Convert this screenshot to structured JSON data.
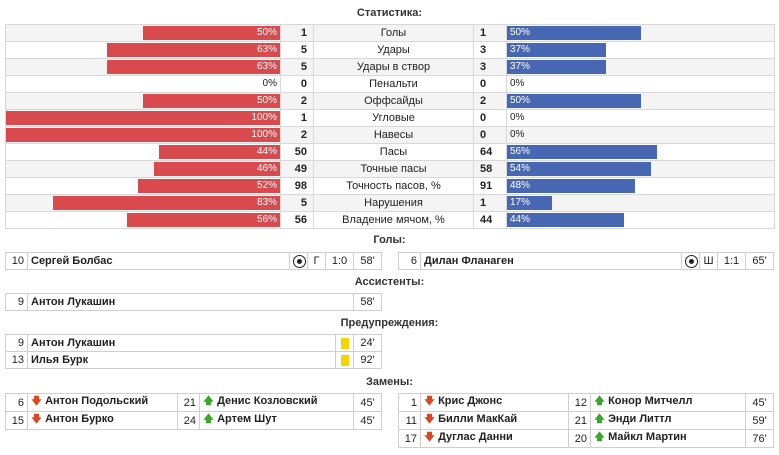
{
  "titles": {
    "stats": "Статистика:",
    "goals": "Голы:",
    "assists": "Ассистенты:",
    "warnings": "Предупреждения:",
    "subs": "Замены:"
  },
  "colors": {
    "home_bar": "#d84a4e",
    "away_bar": "#4867b2"
  },
  "stats": [
    {
      "label": "Голы",
      "home": "1",
      "away": "1",
      "home_pct": "50%",
      "away_pct": "50%",
      "home_frac": 0.5,
      "away_frac": 0.5
    },
    {
      "label": "Удары",
      "home": "5",
      "away": "3",
      "home_pct": "63%",
      "away_pct": "37%",
      "home_frac": 0.63,
      "away_frac": 0.37
    },
    {
      "label": "Удары в створ",
      "home": "5",
      "away": "3",
      "home_pct": "63%",
      "away_pct": "37%",
      "home_frac": 0.63,
      "away_frac": 0.37
    },
    {
      "label": "Пенальти",
      "home": "0",
      "away": "0",
      "home_pct": "0%",
      "away_pct": "0%",
      "home_frac": 0,
      "away_frac": 0
    },
    {
      "label": "Оффсайды",
      "home": "2",
      "away": "2",
      "home_pct": "50%",
      "away_pct": "50%",
      "home_frac": 0.5,
      "away_frac": 0.5
    },
    {
      "label": "Угловые",
      "home": "1",
      "away": "0",
      "home_pct": "100%",
      "away_pct": "0%",
      "home_frac": 1.0,
      "away_frac": 0
    },
    {
      "label": "Навесы",
      "home": "2",
      "away": "0",
      "home_pct": "100%",
      "away_pct": "0%",
      "home_frac": 1.0,
      "away_frac": 0
    },
    {
      "label": "Пасы",
      "home": "50",
      "away": "64",
      "home_pct": "44%",
      "away_pct": "56%",
      "home_frac": 0.44,
      "away_frac": 0.56
    },
    {
      "label": "Точные пасы",
      "home": "49",
      "away": "58",
      "home_pct": "46%",
      "away_pct": "54%",
      "home_frac": 0.46,
      "away_frac": 0.54
    },
    {
      "label": "Точность пасов, %",
      "home": "98",
      "away": "91",
      "home_pct": "52%",
      "away_pct": "48%",
      "home_frac": 0.52,
      "away_frac": 0.48
    },
    {
      "label": "Нарушения",
      "home": "5",
      "away": "1",
      "home_pct": "83%",
      "away_pct": "17%",
      "home_frac": 0.83,
      "away_frac": 0.17
    },
    {
      "label": "Владение мячом, %",
      "home": "56",
      "away": "44",
      "home_pct": "56%",
      "away_pct": "44%",
      "home_frac": 0.56,
      "away_frac": 0.44
    }
  ],
  "goals": {
    "home": {
      "num": "10",
      "name": "Сергей Болбас",
      "icon": "ball-icon",
      "type": "Г",
      "score": "1:0",
      "minute": "58'"
    },
    "away": {
      "num": "6",
      "name": "Дилан Фланаген",
      "icon": "ball-icon",
      "type": "Ш",
      "score": "1:1",
      "minute": "65'"
    }
  },
  "assists": [
    {
      "num": "9",
      "name": "Антон Лукашин",
      "minute": "58'"
    }
  ],
  "warnings": [
    {
      "num": "9",
      "name": "Антон Лукашин",
      "card": "yellow-card-icon",
      "minute": "24'"
    },
    {
      "num": "13",
      "name": "Илья Бурк",
      "card": "yellow-card-icon",
      "minute": "92'"
    }
  ],
  "subs": {
    "home": [
      {
        "out_num": "6",
        "out_name": "Антон Подольский",
        "in_num": "21",
        "in_name": "Денис Козловский",
        "minute": "45'"
      },
      {
        "out_num": "15",
        "out_name": "Антон Бурко",
        "in_num": "24",
        "in_name": "Артем Шут",
        "minute": "45'"
      }
    ],
    "away": [
      {
        "out_num": "1",
        "out_name": "Крис Джонс",
        "in_num": "12",
        "in_name": "Конор Митчелл",
        "minute": "45'"
      },
      {
        "out_num": "11",
        "out_name": "Билли МакКай",
        "in_num": "21",
        "in_name": "Энди Литтл",
        "minute": "59'"
      },
      {
        "out_num": "17",
        "out_name": "Дуглас Данни",
        "in_num": "20",
        "in_name": "Майкл Мартин",
        "minute": "76'"
      }
    ]
  }
}
